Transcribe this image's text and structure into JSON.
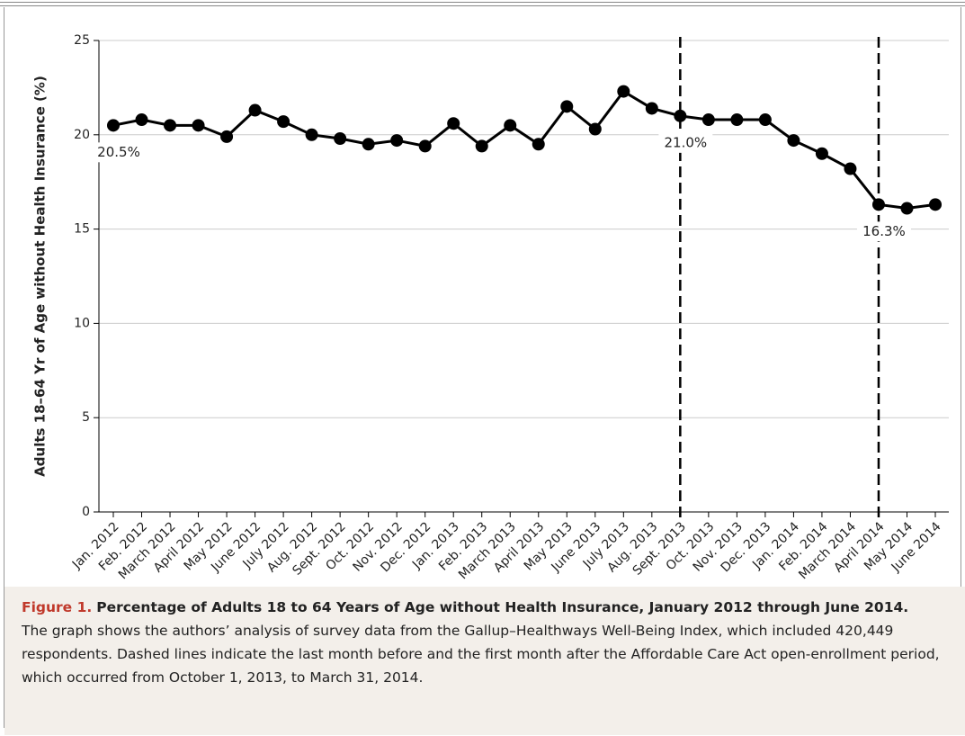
{
  "chart_data": {
    "type": "line",
    "y_label": "Adults 18–64 Yr of Age without Health Insurance (%)",
    "categories": [
      "Jan. 2012",
      "Feb. 2012",
      "March 2012",
      "April 2012",
      "May 2012",
      "June 2012",
      "July 2012",
      "Aug. 2012",
      "Sept. 2012",
      "Oct. 2012",
      "Nov. 2012",
      "Dec. 2012",
      "Jan. 2013",
      "Feb. 2013",
      "March 2013",
      "April 2013",
      "May 2013",
      "June 2013",
      "July 2013",
      "Aug. 2013",
      "Sept. 2013",
      "Oct. 2013",
      "Nov. 2013",
      "Dec. 2013",
      "Jan. 2014",
      "Feb. 2014",
      "March 2014",
      "April 2014",
      "May 2014",
      "June 2014"
    ],
    "values": [
      20.5,
      20.8,
      20.5,
      20.5,
      19.9,
      21.3,
      20.7,
      20.0,
      19.8,
      19.5,
      19.7,
      19.4,
      20.6,
      19.4,
      20.5,
      19.5,
      21.5,
      20.3,
      22.3,
      21.4,
      21.0,
      20.8,
      20.8,
      20.8,
      19.7,
      19.0,
      18.2,
      16.3,
      16.1,
      16.3
    ],
    "value_labels": [
      "20.5%",
      null,
      null,
      null,
      null,
      null,
      null,
      null,
      null,
      null,
      null,
      null,
      null,
      null,
      null,
      null,
      null,
      null,
      null,
      null,
      "21.0%",
      null,
      null,
      null,
      null,
      null,
      null,
      "16.3%",
      null,
      null
    ],
    "color": "#000000",
    "dashed_lines_at": [
      "Sept. 2013",
      "April 2014"
    ],
    "ylim": [
      0,
      25
    ],
    "yticks": [
      0,
      5,
      10,
      15,
      20,
      25
    ],
    "grid": true
  },
  "figure": {
    "label": "Figure 1.",
    "title": "Percentage of Adults 18 to 64 Years of Age without Health Insurance, January 2012 through June 2014.",
    "text": "The graph shows the authors’ analysis of survey data from the Gallup–Healthways Well-Being Index, which included 420,449 respondents. Dashed lines indicate the last month before and the first month after the Affordable Care Act open-enrollment period, which occurred from October 1, 2013, to March 31, 2014."
  }
}
